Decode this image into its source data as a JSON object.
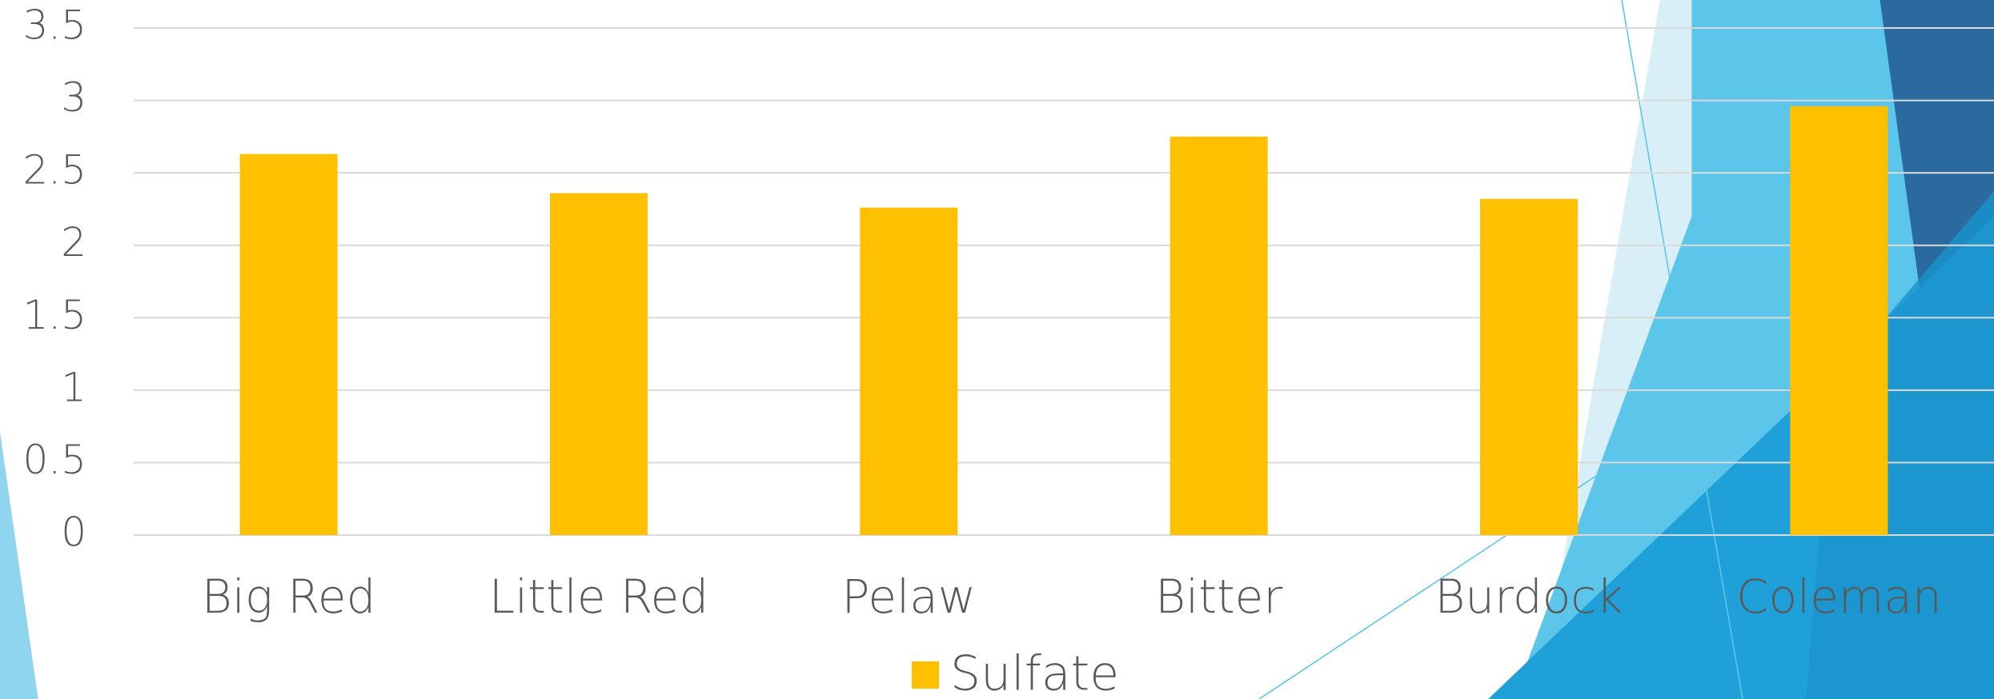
{
  "chart_data": {
    "type": "bar",
    "categories": [
      "Big Red",
      "Little Red",
      "Pelaw",
      "Bitter",
      "Burdock",
      "Coleman"
    ],
    "series": [
      {
        "name": "Sulfate",
        "color": "#ffc000",
        "values": [
          2.63,
          2.36,
          2.26,
          2.75,
          2.32,
          2.96
        ]
      }
    ],
    "ylim": [
      0,
      3.5
    ],
    "yticks": [
      0,
      0.5,
      1,
      1.5,
      2,
      2.5,
      3,
      3.5
    ],
    "grid": true,
    "legend": "bottom"
  }
}
